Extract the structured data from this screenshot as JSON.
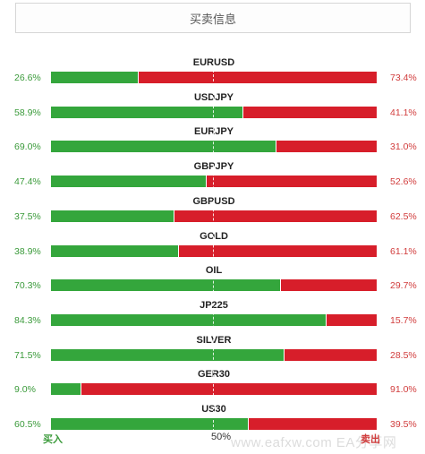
{
  "header": {
    "title": "买卖信息"
  },
  "rows": [
    {
      "symbol": "EURUSD",
      "buy": 26.6,
      "sell": 73.4,
      "buy_label": "26.6%",
      "sell_label": "73.4%"
    },
    {
      "symbol": "USDJPY",
      "buy": 58.9,
      "sell": 41.1,
      "buy_label": "58.9%",
      "sell_label": "41.1%"
    },
    {
      "symbol": "EURJPY",
      "buy": 69.0,
      "sell": 31.0,
      "buy_label": "69.0%",
      "sell_label": "31.0%"
    },
    {
      "symbol": "GBPJPY",
      "buy": 47.4,
      "sell": 52.6,
      "buy_label": "47.4%",
      "sell_label": "52.6%"
    },
    {
      "symbol": "GBPUSD",
      "buy": 37.5,
      "sell": 62.5,
      "buy_label": "37.5%",
      "sell_label": "62.5%"
    },
    {
      "symbol": "GOLD",
      "buy": 38.9,
      "sell": 61.1,
      "buy_label": "38.9%",
      "sell_label": "61.1%"
    },
    {
      "symbol": "OIL",
      "buy": 70.3,
      "sell": 29.7,
      "buy_label": "70.3%",
      "sell_label": "29.7%"
    },
    {
      "symbol": "JP225",
      "buy": 84.3,
      "sell": 15.7,
      "buy_label": "84.3%",
      "sell_label": "15.7%"
    },
    {
      "symbol": "SILVER",
      "buy": 71.5,
      "sell": 28.5,
      "buy_label": "71.5%",
      "sell_label": "28.5%"
    },
    {
      "symbol": "GER30",
      "buy": 9.0,
      "sell": 91.0,
      "buy_label": "9.0%",
      "sell_label": "91.0%"
    },
    {
      "symbol": "US30",
      "buy": 60.5,
      "sell": 39.5,
      "buy_label": "60.5%",
      "sell_label": "39.5%"
    }
  ],
  "axis": {
    "left": "买入",
    "mid": "50%",
    "right": "卖出"
  },
  "watermark": "www.eafxw.com EA分享网",
  "colors": {
    "buy": "#34a63c",
    "sell": "#d71e2a",
    "buy_text": "#3a9a3a",
    "sell_text": "#d13c3c"
  }
}
